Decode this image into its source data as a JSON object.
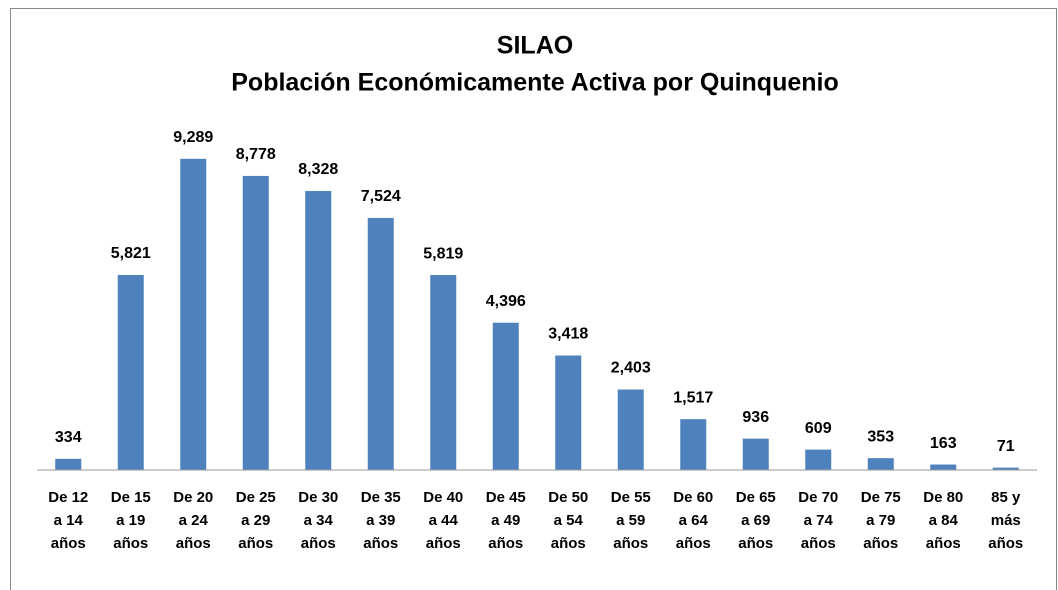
{
  "chart_data": {
    "type": "bar",
    "title": [
      "SILAO",
      "Población Económicamente Activa por Quinquenio"
    ],
    "categories": [
      [
        "De 12",
        "a 14",
        "años"
      ],
      [
        "De 15",
        "a 19",
        "años"
      ],
      [
        "De 20",
        "a 24",
        "años"
      ],
      [
        "De 25",
        "a 29",
        "años"
      ],
      [
        "De 30",
        "a 34",
        "años"
      ],
      [
        "De 35",
        "a 39",
        "años"
      ],
      [
        "De 40",
        "a 44",
        "años"
      ],
      [
        "De 45",
        "a 49",
        "años"
      ],
      [
        "De 50",
        "a 54",
        "años"
      ],
      [
        "De 55",
        "a 59",
        "años"
      ],
      [
        "De 60",
        "a 64",
        "años"
      ],
      [
        "De 65",
        "a 69",
        "años"
      ],
      [
        "De 70",
        "a 74",
        "años"
      ],
      [
        "De 75",
        "a 79",
        "años"
      ],
      [
        "De 80",
        "a 84",
        "años"
      ],
      [
        "85 y",
        "más",
        "años"
      ]
    ],
    "values": [
      334,
      5821,
      9289,
      8778,
      8328,
      7524,
      5819,
      4396,
      3418,
      2403,
      1517,
      936,
      609,
      353,
      163,
      71
    ],
    "value_labels": [
      "334",
      "5,821",
      "9,289",
      "8,778",
      "8,328",
      "7,524",
      "5,819",
      "4,396",
      "3,418",
      "2,403",
      "1,517",
      "936",
      "609",
      "353",
      "163",
      "71"
    ],
    "color": "#4f81bd",
    "ylim": [
      0,
      10000
    ]
  }
}
